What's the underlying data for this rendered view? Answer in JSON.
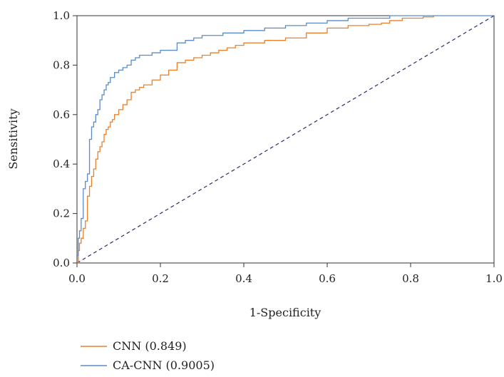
{
  "chart_data": {
    "type": "line",
    "title": "",
    "xlabel": "1-Specificity",
    "ylabel": "Sensitivity",
    "xlim": [
      0.0,
      1.0
    ],
    "ylim": [
      0.0,
      1.0
    ],
    "x_ticks": [
      "0.0",
      "0.2",
      "0.4",
      "0.6",
      "0.8",
      "1.0"
    ],
    "y_ticks": [
      "0.0",
      "0.2",
      "0.4",
      "0.6",
      "0.8",
      "1.0"
    ],
    "grid": false,
    "legend": "bottom-left",
    "reference_line": {
      "x": [
        0,
        1
      ],
      "y": [
        0,
        1
      ],
      "color": "#2b2b6e",
      "style": "dashed"
    },
    "series": [
      {
        "name": "CNN (0.849)",
        "color": "#e8802e",
        "x": [
          0.0,
          0.003,
          0.006,
          0.01,
          0.015,
          0.02,
          0.025,
          0.03,
          0.035,
          0.04,
          0.045,
          0.05,
          0.055,
          0.06,
          0.065,
          0.07,
          0.075,
          0.08,
          0.085,
          0.09,
          0.1,
          0.11,
          0.12,
          0.13,
          0.14,
          0.15,
          0.16,
          0.18,
          0.2,
          0.22,
          0.24,
          0.26,
          0.28,
          0.3,
          0.32,
          0.34,
          0.36,
          0.38,
          0.4,
          0.45,
          0.5,
          0.55,
          0.6,
          0.65,
          0.7,
          0.73,
          0.75,
          0.78,
          0.8,
          0.83,
          0.855
        ],
        "y": [
          0.0,
          0.05,
          0.08,
          0.1,
          0.14,
          0.17,
          0.27,
          0.31,
          0.35,
          0.38,
          0.42,
          0.45,
          0.47,
          0.49,
          0.52,
          0.54,
          0.55,
          0.57,
          0.58,
          0.6,
          0.62,
          0.64,
          0.66,
          0.69,
          0.7,
          0.71,
          0.72,
          0.74,
          0.76,
          0.78,
          0.81,
          0.82,
          0.83,
          0.84,
          0.85,
          0.86,
          0.87,
          0.88,
          0.89,
          0.9,
          0.91,
          0.93,
          0.95,
          0.96,
          0.965,
          0.97,
          0.98,
          0.99,
          0.99,
          0.995,
          1.0
        ]
      },
      {
        "name": "CA-CNN (0.9005)",
        "color": "#5b8cc8",
        "x": [
          0.0,
          0.003,
          0.006,
          0.01,
          0.015,
          0.02,
          0.025,
          0.03,
          0.035,
          0.04,
          0.045,
          0.05,
          0.055,
          0.06,
          0.065,
          0.07,
          0.075,
          0.08,
          0.09,
          0.1,
          0.11,
          0.12,
          0.13,
          0.14,
          0.15,
          0.16,
          0.18,
          0.2,
          0.22,
          0.24,
          0.26,
          0.28,
          0.3,
          0.35,
          0.4,
          0.45,
          0.5,
          0.55,
          0.6,
          0.65,
          0.7,
          0.75,
          0.8,
          0.85,
          1.0
        ],
        "y": [
          0.03,
          0.1,
          0.13,
          0.18,
          0.3,
          0.33,
          0.36,
          0.5,
          0.55,
          0.57,
          0.6,
          0.62,
          0.66,
          0.68,
          0.7,
          0.72,
          0.73,
          0.75,
          0.77,
          0.78,
          0.79,
          0.8,
          0.82,
          0.83,
          0.84,
          0.84,
          0.85,
          0.86,
          0.86,
          0.89,
          0.9,
          0.91,
          0.92,
          0.93,
          0.94,
          0.95,
          0.96,
          0.97,
          0.98,
          0.99,
          0.99,
          1.0,
          1.0,
          1.0,
          1.0
        ]
      }
    ]
  }
}
